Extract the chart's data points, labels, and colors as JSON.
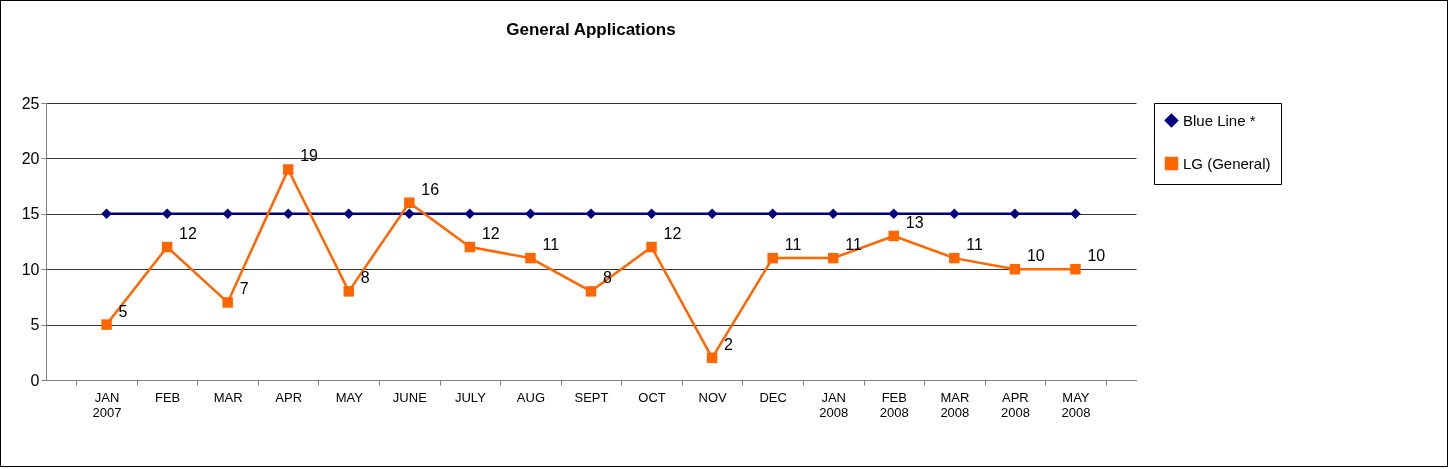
{
  "chart_data": {
    "type": "line",
    "title": "General Applications",
    "categories": [
      "JAN 2007",
      "FEB",
      "MAR",
      "APR",
      "MAY",
      "JUNE",
      "JULY",
      "AUG",
      "SEPT",
      "OCT",
      "NOV",
      "DEC",
      "JAN 2008",
      "FEB 2008",
      "MAR 2008",
      "APR 2008",
      "MAY 2008"
    ],
    "series": [
      {
        "name": "Blue Line *",
        "color": "#000080",
        "marker": "diamond",
        "values": [
          15,
          15,
          15,
          15,
          15,
          15,
          15,
          15,
          15,
          15,
          15,
          15,
          15,
          15,
          15,
          15,
          15
        ]
      },
      {
        "name": "LG (General)",
        "color": "#ff6600",
        "marker": "square",
        "values": [
          5,
          12,
          7,
          19,
          8,
          16,
          12,
          11,
          8,
          12,
          2,
          11,
          11,
          13,
          11,
          10,
          10
        ],
        "value_labels": [
          "5",
          "12",
          "7",
          "19",
          "8",
          "16",
          "12",
          "11",
          "8",
          "12",
          "2",
          "11",
          "11",
          "13",
          "11",
          "10",
          "10"
        ]
      }
    ],
    "ylim": [
      0,
      25
    ],
    "yticks": [
      0,
      5,
      10,
      15,
      20,
      25
    ],
    "grid": "y",
    "legend": "right",
    "line_style": "solid"
  }
}
